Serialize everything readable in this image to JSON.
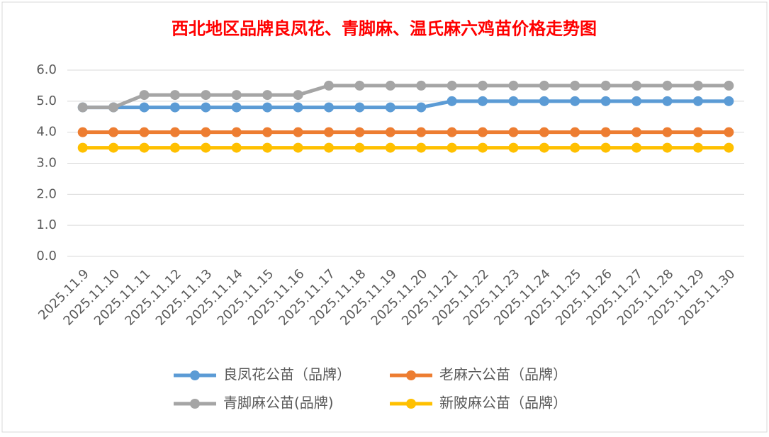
{
  "chart_data": {
    "type": "line",
    "title": "西北地区品牌良凤花、青脚麻、温氏麻六鸡苗价格走势图",
    "categories": [
      "2025.11.9",
      "2025.11.10",
      "2025.11.11",
      "2025.11.12",
      "2025.11.13",
      "2025.11.14",
      "2025.11.15",
      "2025.11.16",
      "2025.11.17",
      "2025.11.18",
      "2025.11.19",
      "2025.11.20",
      "2025.11.21",
      "2025.11.22",
      "2025.11.23",
      "2025.11.24",
      "2025.11.25",
      "2025.11.26",
      "2025.11.27",
      "2025.11.28",
      "2025.11.29",
      "2025.11.30"
    ],
    "series": [
      {
        "name": "良凤花公苗（品牌）",
        "color": "#5b9bd5",
        "values": [
          4.8,
          4.8,
          4.8,
          4.8,
          4.8,
          4.8,
          4.8,
          4.8,
          4.8,
          4.8,
          4.8,
          4.8,
          5.0,
          5.0,
          5.0,
          5.0,
          5.0,
          5.0,
          5.0,
          5.0,
          5.0,
          5.0
        ]
      },
      {
        "name": "老麻六公苗（品牌）",
        "color": "#ed7d31",
        "values": [
          4.0,
          4.0,
          4.0,
          4.0,
          4.0,
          4.0,
          4.0,
          4.0,
          4.0,
          4.0,
          4.0,
          4.0,
          4.0,
          4.0,
          4.0,
          4.0,
          4.0,
          4.0,
          4.0,
          4.0,
          4.0,
          4.0
        ]
      },
      {
        "name": "青脚麻公苗(品牌)",
        "color": "#a5a5a5",
        "values": [
          4.8,
          4.8,
          5.2,
          5.2,
          5.2,
          5.2,
          5.2,
          5.2,
          5.5,
          5.5,
          5.5,
          5.5,
          5.5,
          5.5,
          5.5,
          5.5,
          5.5,
          5.5,
          5.5,
          5.5,
          5.5,
          5.5
        ]
      },
      {
        "name": "新陂麻公苗（品牌）",
        "color": "#ffc000",
        "values": [
          3.5,
          3.5,
          3.5,
          3.5,
          3.5,
          3.5,
          3.5,
          3.5,
          3.5,
          3.5,
          3.5,
          3.5,
          3.5,
          3.5,
          3.5,
          3.5,
          3.5,
          3.5,
          3.5,
          3.5,
          3.5,
          3.5
        ]
      }
    ],
    "ylim": [
      0,
      6
    ],
    "yticks": [
      {
        "value": 0,
        "label": "0.0"
      },
      {
        "value": 1,
        "label": "1.0"
      },
      {
        "value": 2,
        "label": "2.0"
      },
      {
        "value": 3,
        "label": "3.0"
      },
      {
        "value": 4,
        "label": "4.0"
      },
      {
        "value": 5,
        "label": "5.0"
      },
      {
        "value": 6,
        "label": "6.0"
      }
    ],
    "grid": true
  }
}
